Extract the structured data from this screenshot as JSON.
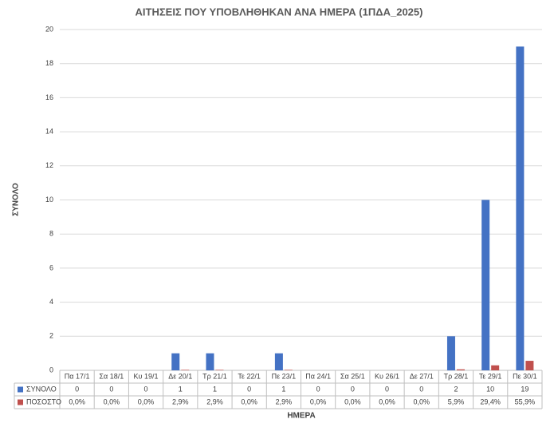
{
  "chart_data": {
    "type": "bar",
    "title": "ΑΙΤΗΣΕΙΣ ΠΟΥ ΥΠΟΒΛΗΘΗΚΑΝ ΑΝΑ ΗΜΕΡΑ (1ΠΔΑ_2025)",
    "x_label": "ΗΜΕΡΑ",
    "y_label": "ΣΥΝΟΛΟ",
    "categories": [
      "Πα 17/1",
      "Σα 18/1",
      "Κυ 19/1",
      "Δε 20/1",
      "Τρ 21/1",
      "Τε 22/1",
      "Πε 23/1",
      "Πα 24/1",
      "Σα 25/1",
      "Κυ 26/1",
      "Δε 27/1",
      "Τρ 28/1",
      "Τε 29/1",
      "Πε 30/1"
    ],
    "series": [
      {
        "name": "ΣΥΝΟΛΟ",
        "color": "#4472c4",
        "values": [
          0,
          0,
          0,
          1,
          1,
          0,
          1,
          0,
          0,
          0,
          0,
          2,
          10,
          19
        ]
      },
      {
        "name": "ΠΟΣΟΣΤΟ",
        "color": "#c0504d",
        "values": [
          0,
          0,
          0,
          0.029,
          0.029,
          0,
          0.029,
          0,
          0,
          0,
          0,
          0.059,
          0.294,
          0.559
        ],
        "value_labels": [
          "0,0%",
          "0,0%",
          "0,0%",
          "2,9%",
          "2,9%",
          "0,0%",
          "2,9%",
          "0,0%",
          "0,0%",
          "0,0%",
          "0,0%",
          "5,9%",
          "29,4%",
          "55,9%"
        ]
      }
    ],
    "ylim": [
      0,
      20
    ],
    "yticks": [
      0,
      2,
      4,
      6,
      8,
      10,
      12,
      14,
      16,
      18,
      20
    ],
    "grid": true
  }
}
